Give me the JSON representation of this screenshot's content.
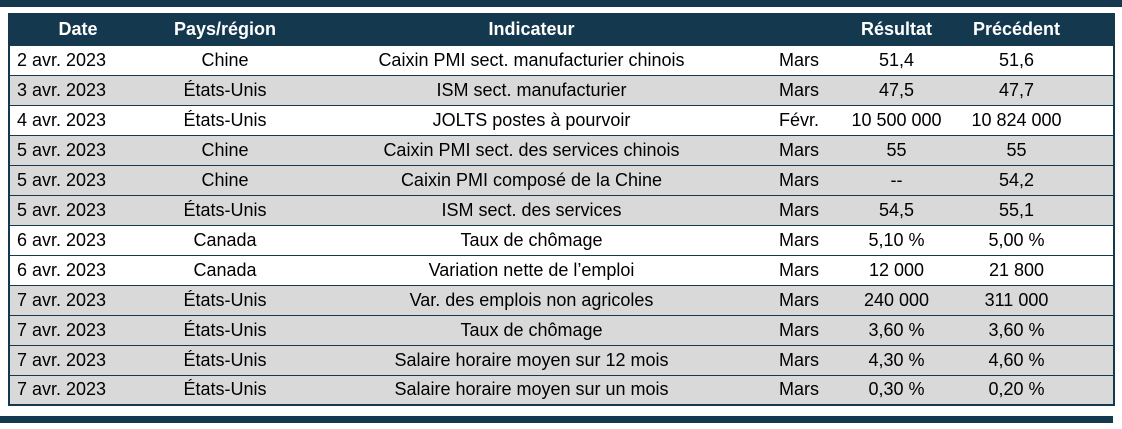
{
  "colors": {
    "accent": "#14384e",
    "row_alt": "#d9d9d9",
    "header_text": "#ffffff",
    "body_text": "#000000"
  },
  "table": {
    "columns": [
      {
        "key": "date",
        "label": "Date"
      },
      {
        "key": "region",
        "label": "Pays/région"
      },
      {
        "key": "indicator",
        "label": "Indicateur"
      },
      {
        "key": "period",
        "label": ""
      },
      {
        "key": "result",
        "label": "Résultat"
      },
      {
        "key": "previous",
        "label": "Précédent"
      }
    ],
    "rows": [
      {
        "date": "2 avr. 2023",
        "region": "Chine",
        "indicator": "Caixin PMI sect. manufacturier chinois",
        "period": "Mars",
        "result": "51,4",
        "previous": "51,6",
        "shade": "white"
      },
      {
        "date": "3 avr. 2023",
        "region": "États-Unis",
        "indicator": "ISM sect. manufacturier",
        "period": "Mars",
        "result": "47,5",
        "previous": "47,7",
        "shade": "gray"
      },
      {
        "date": "4 avr. 2023",
        "region": "États-Unis",
        "indicator": "JOLTS postes à pourvoir",
        "period": "Févr.",
        "result": "10 500 000",
        "previous": "10 824 000",
        "shade": "white"
      },
      {
        "date": "5 avr. 2023",
        "region": "Chine",
        "indicator": "Caixin PMI sect. des services chinois",
        "period": "Mars",
        "result": "55",
        "previous": "55",
        "shade": "gray"
      },
      {
        "date": "5 avr. 2023",
        "region": "Chine",
        "indicator": "Caixin PMI composé de la Chine",
        "period": "Mars",
        "result": "--",
        "previous": "54,2",
        "shade": "gray"
      },
      {
        "date": "5 avr. 2023",
        "region": "États-Unis",
        "indicator": "ISM sect. des services",
        "period": "Mars",
        "result": "54,5",
        "previous": "55,1",
        "shade": "gray"
      },
      {
        "date": "6 avr. 2023",
        "region": "Canada",
        "indicator": "Taux de chômage",
        "period": "Mars",
        "result": "5,10 %",
        "previous": "5,00 %",
        "shade": "white"
      },
      {
        "date": "6 avr. 2023",
        "region": "Canada",
        "indicator": "Variation nette de l’emploi",
        "period": "Mars",
        "result": "12 000",
        "previous": "21 800",
        "shade": "white"
      },
      {
        "date": "7 avr. 2023",
        "region": "États-Unis",
        "indicator": "Var. des emplois non agricoles",
        "period": "Mars",
        "result": "240 000",
        "previous": "311 000",
        "shade": "gray"
      },
      {
        "date": "7 avr. 2023",
        "region": "États-Unis",
        "indicator": "Taux de chômage",
        "period": "Mars",
        "result": "3,60 %",
        "previous": "3,60 %",
        "shade": "gray"
      },
      {
        "date": "7 avr. 2023",
        "region": "États-Unis",
        "indicator": "Salaire horaire moyen sur 12 mois",
        "period": "Mars",
        "result": "4,30 %",
        "previous": "4,60 %",
        "shade": "gray"
      },
      {
        "date": "7 avr. 2023",
        "region": "États-Unis",
        "indicator": "Salaire horaire moyen sur un mois",
        "period": "Mars",
        "result": "0,30 %",
        "previous": "0,20 %",
        "shade": "gray"
      }
    ]
  }
}
